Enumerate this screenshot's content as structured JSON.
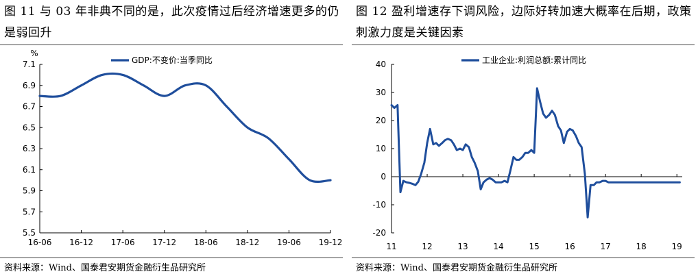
{
  "left": {
    "title": "图 11 与 03 年非典不同的是，此次疫情过后经济增速更多的仍是弱回升",
    "source": "资料来源：Wind、国泰君安期货金融衍生品研究所",
    "chart_data": {
      "type": "line",
      "ylabel": "%",
      "ylim": [
        5.5,
        7.1
      ],
      "yticks": [
        "7.1",
        "6.9",
        "6.7",
        "6.5",
        "6.3",
        "6.1",
        "5.9",
        "5.7",
        "5.5"
      ],
      "xticks": [
        "16-06",
        "16-12",
        "17-06",
        "17-12",
        "18-06",
        "18-12",
        "19-06",
        "19-12"
      ],
      "xlim": [
        0,
        42
      ],
      "legend": "top-center",
      "grid": false,
      "series": [
        {
          "name": "GDP:不变价:当季同比",
          "color": "#1f4e9c",
          "x": [
            0,
            3,
            6,
            9,
            12,
            15,
            18,
            21,
            24,
            27,
            30,
            33,
            36,
            39,
            42
          ],
          "values": [
            6.8,
            6.8,
            6.9,
            7.0,
            7.0,
            6.9,
            6.8,
            6.9,
            6.9,
            6.7,
            6.5,
            6.4,
            6.2,
            6.0,
            6.0
          ]
        }
      ]
    }
  },
  "right": {
    "title": "图 12 盈利增速存下调风险，边际好转加速大概率在后期，政策刺激力度是关键因素",
    "source": "资料来源：Wind、国泰君安期货金融衍生品研究所",
    "chart_data": {
      "type": "line",
      "ylim": [
        -20,
        40
      ],
      "yticks": [
        "40",
        "30",
        "20",
        "10",
        "0",
        "-10",
        "-20"
      ],
      "xticks": [
        "11",
        "12",
        "13",
        "14",
        "15",
        "16",
        "17",
        "18",
        "19"
      ],
      "xlim": [
        2011.0,
        2019.15
      ],
      "legend": "top-center",
      "grid": false,
      "series": [
        {
          "name": "工业企业:利润总额:累计同比",
          "color": "#1f4e9c",
          "x": [
            2011.0,
            2011.08,
            2011.17,
            2011.25,
            2011.33,
            2011.42,
            2011.5,
            2011.58,
            2011.67,
            2011.75,
            2011.83,
            2011.92,
            2012.0,
            2012.08,
            2012.17,
            2012.25,
            2012.33,
            2012.42,
            2012.5,
            2012.58,
            2012.67,
            2012.75,
            2012.83,
            2012.92,
            2013.0,
            2013.08,
            2013.17,
            2013.25,
            2013.33,
            2013.42,
            2013.5,
            2013.58,
            2013.67,
            2013.75,
            2013.83,
            2013.92,
            2014.0,
            2014.08,
            2014.17,
            2014.25,
            2014.33,
            2014.42,
            2014.5,
            2014.58,
            2014.67,
            2014.75,
            2014.83,
            2014.92,
            2015.0,
            2015.08,
            2015.17,
            2015.25,
            2015.33,
            2015.42,
            2015.5,
            2015.58,
            2015.67,
            2015.75,
            2015.83,
            2015.92,
            2016.0,
            2016.08,
            2016.17,
            2016.25,
            2016.33,
            2016.42,
            2016.5,
            2016.58,
            2016.67,
            2016.75,
            2016.83,
            2016.92,
            2017.0,
            2017.08,
            2017.17,
            2017.25,
            2017.33,
            2017.42,
            2017.5,
            2017.58,
            2017.67,
            2017.75,
            2017.83,
            2017.92,
            2018.0,
            2018.08,
            2018.17,
            2018.25,
            2018.33,
            2018.42,
            2018.5,
            2018.58,
            2018.67,
            2018.75,
            2018.83,
            2018.92,
            2019.0,
            2019.08
          ],
          "values": [
            25.5,
            24.5,
            25.5,
            -5.5,
            -1.5,
            -2.0,
            -2.2,
            -2.5,
            -3.0,
            -1.8,
            1.0,
            5.0,
            12.0,
            17.0,
            11.5,
            12.0,
            11.0,
            12.0,
            13.0,
            13.5,
            13.0,
            11.5,
            9.5,
            10.0,
            9.5,
            11.5,
            10.5,
            7.0,
            5.0,
            2.0,
            -4.5,
            -2.0,
            -1.0,
            -0.5,
            -1.0,
            -2.0,
            -2.0,
            -2.0,
            -1.5,
            -2.0,
            2.0,
            7.0,
            6.0,
            6.0,
            7.0,
            8.5,
            8.5,
            9.5,
            8.5,
            31.5,
            26.5,
            22.5,
            21.0,
            22.0,
            23.5,
            22.0,
            18.0,
            16.5,
            12.0,
            16.0,
            17.0,
            16.5,
            14.5,
            12.0,
            10.5,
            1.0,
            -14.5,
            -3.0,
            -3.0,
            -2.0,
            -2.0,
            -1.5,
            -1.5,
            -2.0,
            -2.0,
            -2.0,
            -2.0,
            -2.0,
            -2.0,
            -2.0,
            -2.0,
            -2.0,
            -2.0,
            -2.0,
            -2.0,
            -2.0,
            -2.0,
            -2.0,
            -2.0,
            -2.0,
            -2.0,
            -2.0,
            -2.0,
            -2.0,
            -2.0,
            -2.0,
            -2.0,
            -2.0
          ]
        }
      ]
    }
  }
}
